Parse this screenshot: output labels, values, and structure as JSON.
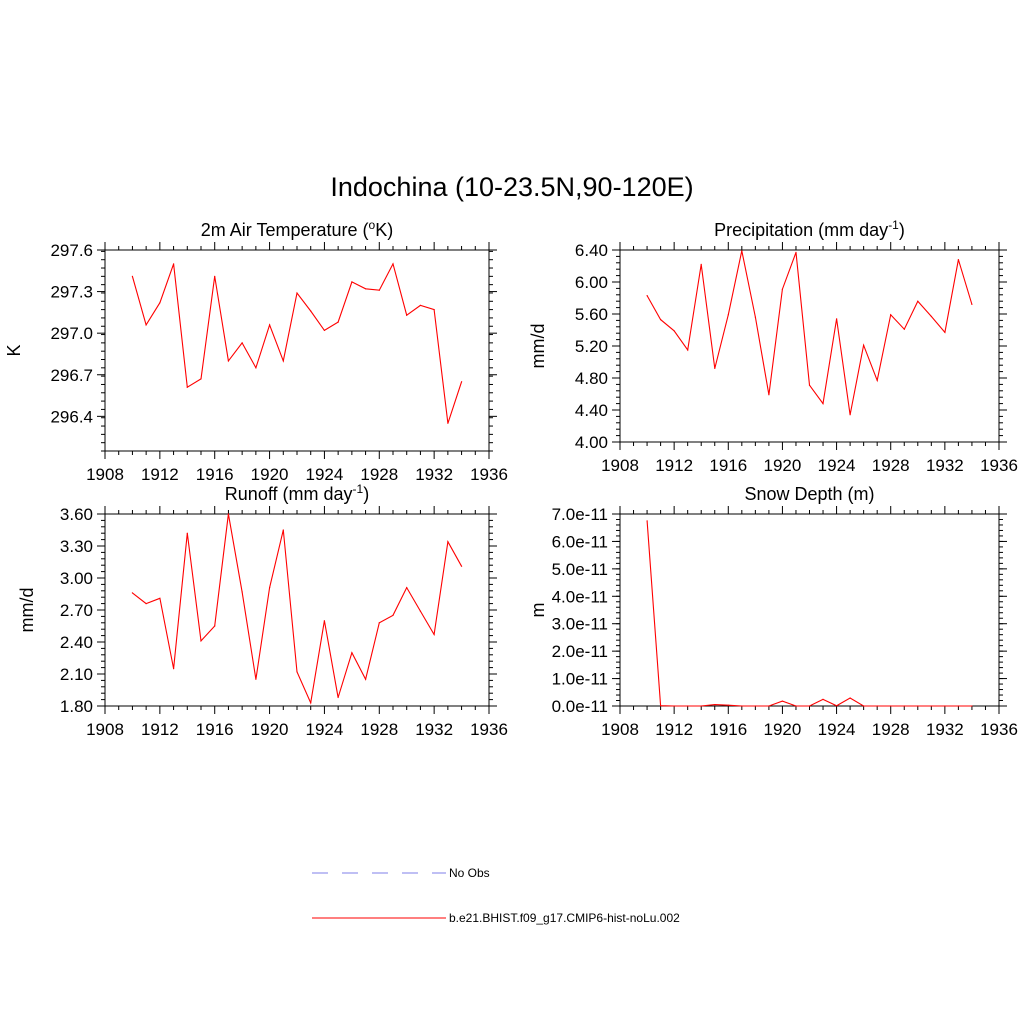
{
  "figure": {
    "title": "Indochina (10-23.5N,90-120E)"
  },
  "legend": {
    "entries": [
      {
        "label": "No Obs",
        "style": "dashed",
        "color": "#9999ee"
      },
      {
        "label": "b.e21.BHIST.f09_g17.CMIP6-hist-noLu.002",
        "style": "solid",
        "color": "#ff3333"
      }
    ]
  },
  "chart_data": [
    {
      "type": "line",
      "title": "2m Air Temperature (°K)",
      "title_main": "2m Air Temperature (",
      "title_sup": "o",
      "title_after": "K)",
      "ylabel": "K",
      "xlabel": "",
      "xlim": [
        1908,
        1936
      ],
      "ylim": [
        296.15,
        297.6
      ],
      "xticks": [
        1908,
        1912,
        1916,
        1920,
        1924,
        1928,
        1932,
        1936
      ],
      "xtick_labels": [
        "1908",
        "1912",
        "1916",
        "1920",
        "1924",
        "1928",
        "1932",
        "1936"
      ],
      "yticks": [
        296.4,
        296.7,
        297.0,
        297.3,
        297.6
      ],
      "ytick_labels": [
        "296.4",
        "296.7",
        "297.0",
        "297.3",
        "297.6"
      ],
      "y_minor_step": 0.06,
      "grid": false,
      "series": [
        {
          "color": "#ff0000",
          "x": [
            1910,
            1911,
            1912,
            1913,
            1914,
            1915,
            1916,
            1917,
            1918,
            1919,
            1920,
            1921,
            1922,
            1923,
            1924,
            1925,
            1926,
            1927,
            1928,
            1929,
            1930,
            1931,
            1932,
            1933,
            1934
          ],
          "y": [
            297.41,
            297.06,
            297.22,
            297.5,
            296.61,
            296.67,
            297.41,
            296.8,
            296.93,
            296.75,
            297.06,
            296.8,
            297.29,
            297.16,
            297.02,
            297.08,
            297.37,
            297.32,
            297.31,
            297.5,
            297.13,
            297.2,
            297.17,
            296.35,
            296.65
          ]
        }
      ]
    },
    {
      "type": "line",
      "title": "Precipitation (mm day-1)",
      "title_main": "Precipitation (mm day",
      "title_sup": "-1",
      "title_after": ")",
      "ylabel": "mm/d",
      "xlabel": "",
      "xlim": [
        1908,
        1936
      ],
      "ylim": [
        4.0,
        6.4
      ],
      "xticks": [
        1908,
        1912,
        1916,
        1920,
        1924,
        1928,
        1932,
        1936
      ],
      "xtick_labels": [
        "1908",
        "1912",
        "1916",
        "1920",
        "1924",
        "1928",
        "1932",
        "1936"
      ],
      "yticks": [
        4.0,
        4.4,
        4.8,
        5.2,
        5.6,
        6.0,
        6.4
      ],
      "ytick_labels": [
        "4.00",
        "4.40",
        "4.80",
        "5.20",
        "5.60",
        "6.00",
        "6.40"
      ],
      "y_minor_step": 0.08,
      "grid": false,
      "series": [
        {
          "color": "#ff0000",
          "x": [
            1910,
            1911,
            1912,
            1913,
            1914,
            1915,
            1916,
            1917,
            1918,
            1919,
            1920,
            1921,
            1922,
            1923,
            1924,
            1925,
            1926,
            1927,
            1928,
            1929,
            1930,
            1931,
            1932,
            1933,
            1934
          ],
          "y": [
            5.83,
            5.53,
            5.39,
            5.15,
            6.22,
            4.92,
            5.59,
            6.39,
            5.56,
            4.59,
            5.91,
            6.37,
            4.71,
            4.48,
            5.54,
            4.34,
            5.21,
            4.77,
            5.59,
            5.41,
            5.76,
            5.57,
            5.37,
            6.28,
            5.72
          ]
        }
      ]
    },
    {
      "type": "line",
      "title": "Runoff (mm day-1)",
      "title_main": "Runoff (mm day",
      "title_sup": "-1",
      "title_after": ")",
      "ylabel": "mm/d",
      "xlabel": "",
      "xlim": [
        1908,
        1936
      ],
      "ylim": [
        1.8,
        3.6
      ],
      "xticks": [
        1908,
        1912,
        1916,
        1920,
        1924,
        1928,
        1932,
        1936
      ],
      "xtick_labels": [
        "1908",
        "1912",
        "1916",
        "1920",
        "1924",
        "1928",
        "1932",
        "1936"
      ],
      "yticks": [
        1.8,
        2.1,
        2.4,
        2.7,
        3.0,
        3.3,
        3.6
      ],
      "ytick_labels": [
        "1.80",
        "2.10",
        "2.40",
        "2.70",
        "3.00",
        "3.30",
        "3.60"
      ],
      "y_minor_step": 0.06,
      "grid": false,
      "series": [
        {
          "color": "#ff0000",
          "x": [
            1910,
            1911,
            1912,
            1913,
            1914,
            1915,
            1916,
            1917,
            1918,
            1919,
            1920,
            1921,
            1922,
            1923,
            1924,
            1925,
            1926,
            1927,
            1928,
            1929,
            1930,
            1931,
            1932,
            1933,
            1934
          ],
          "y": [
            2.86,
            2.76,
            2.81,
            2.15,
            3.42,
            2.41,
            2.55,
            3.6,
            2.87,
            2.05,
            2.91,
            3.45,
            2.12,
            1.83,
            2.6,
            1.88,
            2.3,
            2.05,
            2.58,
            2.65,
            2.91,
            2.69,
            2.47,
            3.34,
            3.11
          ]
        }
      ]
    },
    {
      "type": "line",
      "title": "Snow Depth (m)",
      "title_main": "Snow Depth (m)",
      "title_sup": "",
      "title_after": "",
      "ylabel": "m",
      "xlabel": "",
      "xlim": [
        1908,
        1936
      ],
      "ylim": [
        0,
        7e-11
      ],
      "xticks": [
        1908,
        1912,
        1916,
        1920,
        1924,
        1928,
        1932,
        1936
      ],
      "xtick_labels": [
        "1908",
        "1912",
        "1916",
        "1920",
        "1924",
        "1928",
        "1932",
        "1936"
      ],
      "yticks": [
        0,
        1e-11,
        2e-11,
        3e-11,
        4e-11,
        5e-11,
        6e-11,
        7e-11
      ],
      "ytick_labels": [
        "0.0e-11",
        "1.0e-11",
        "2.0e-11",
        "3.0e-11",
        "4.0e-11",
        "5.0e-11",
        "6.0e-11",
        "7.0e-11"
      ],
      "y_minor_step": 2e-12,
      "grid": false,
      "series": [
        {
          "color": "#ff0000",
          "x": [
            1910,
            1911,
            1912,
            1913,
            1914,
            1915,
            1916,
            1917,
            1918,
            1919,
            1920,
            1921,
            1922,
            1923,
            1924,
            1925,
            1926,
            1927,
            1928,
            1929,
            1930,
            1931,
            1932,
            1933,
            1934
          ],
          "y": [
            6.75e-11,
            1e-13,
            0,
            0,
            0,
            5e-13,
            3e-13,
            0,
            0,
            0,
            1.8e-12,
            0,
            0,
            2.4e-12,
            1e-13,
            2.9e-12,
            0,
            0,
            0,
            0,
            0,
            0,
            0,
            0,
            0
          ]
        }
      ]
    }
  ]
}
